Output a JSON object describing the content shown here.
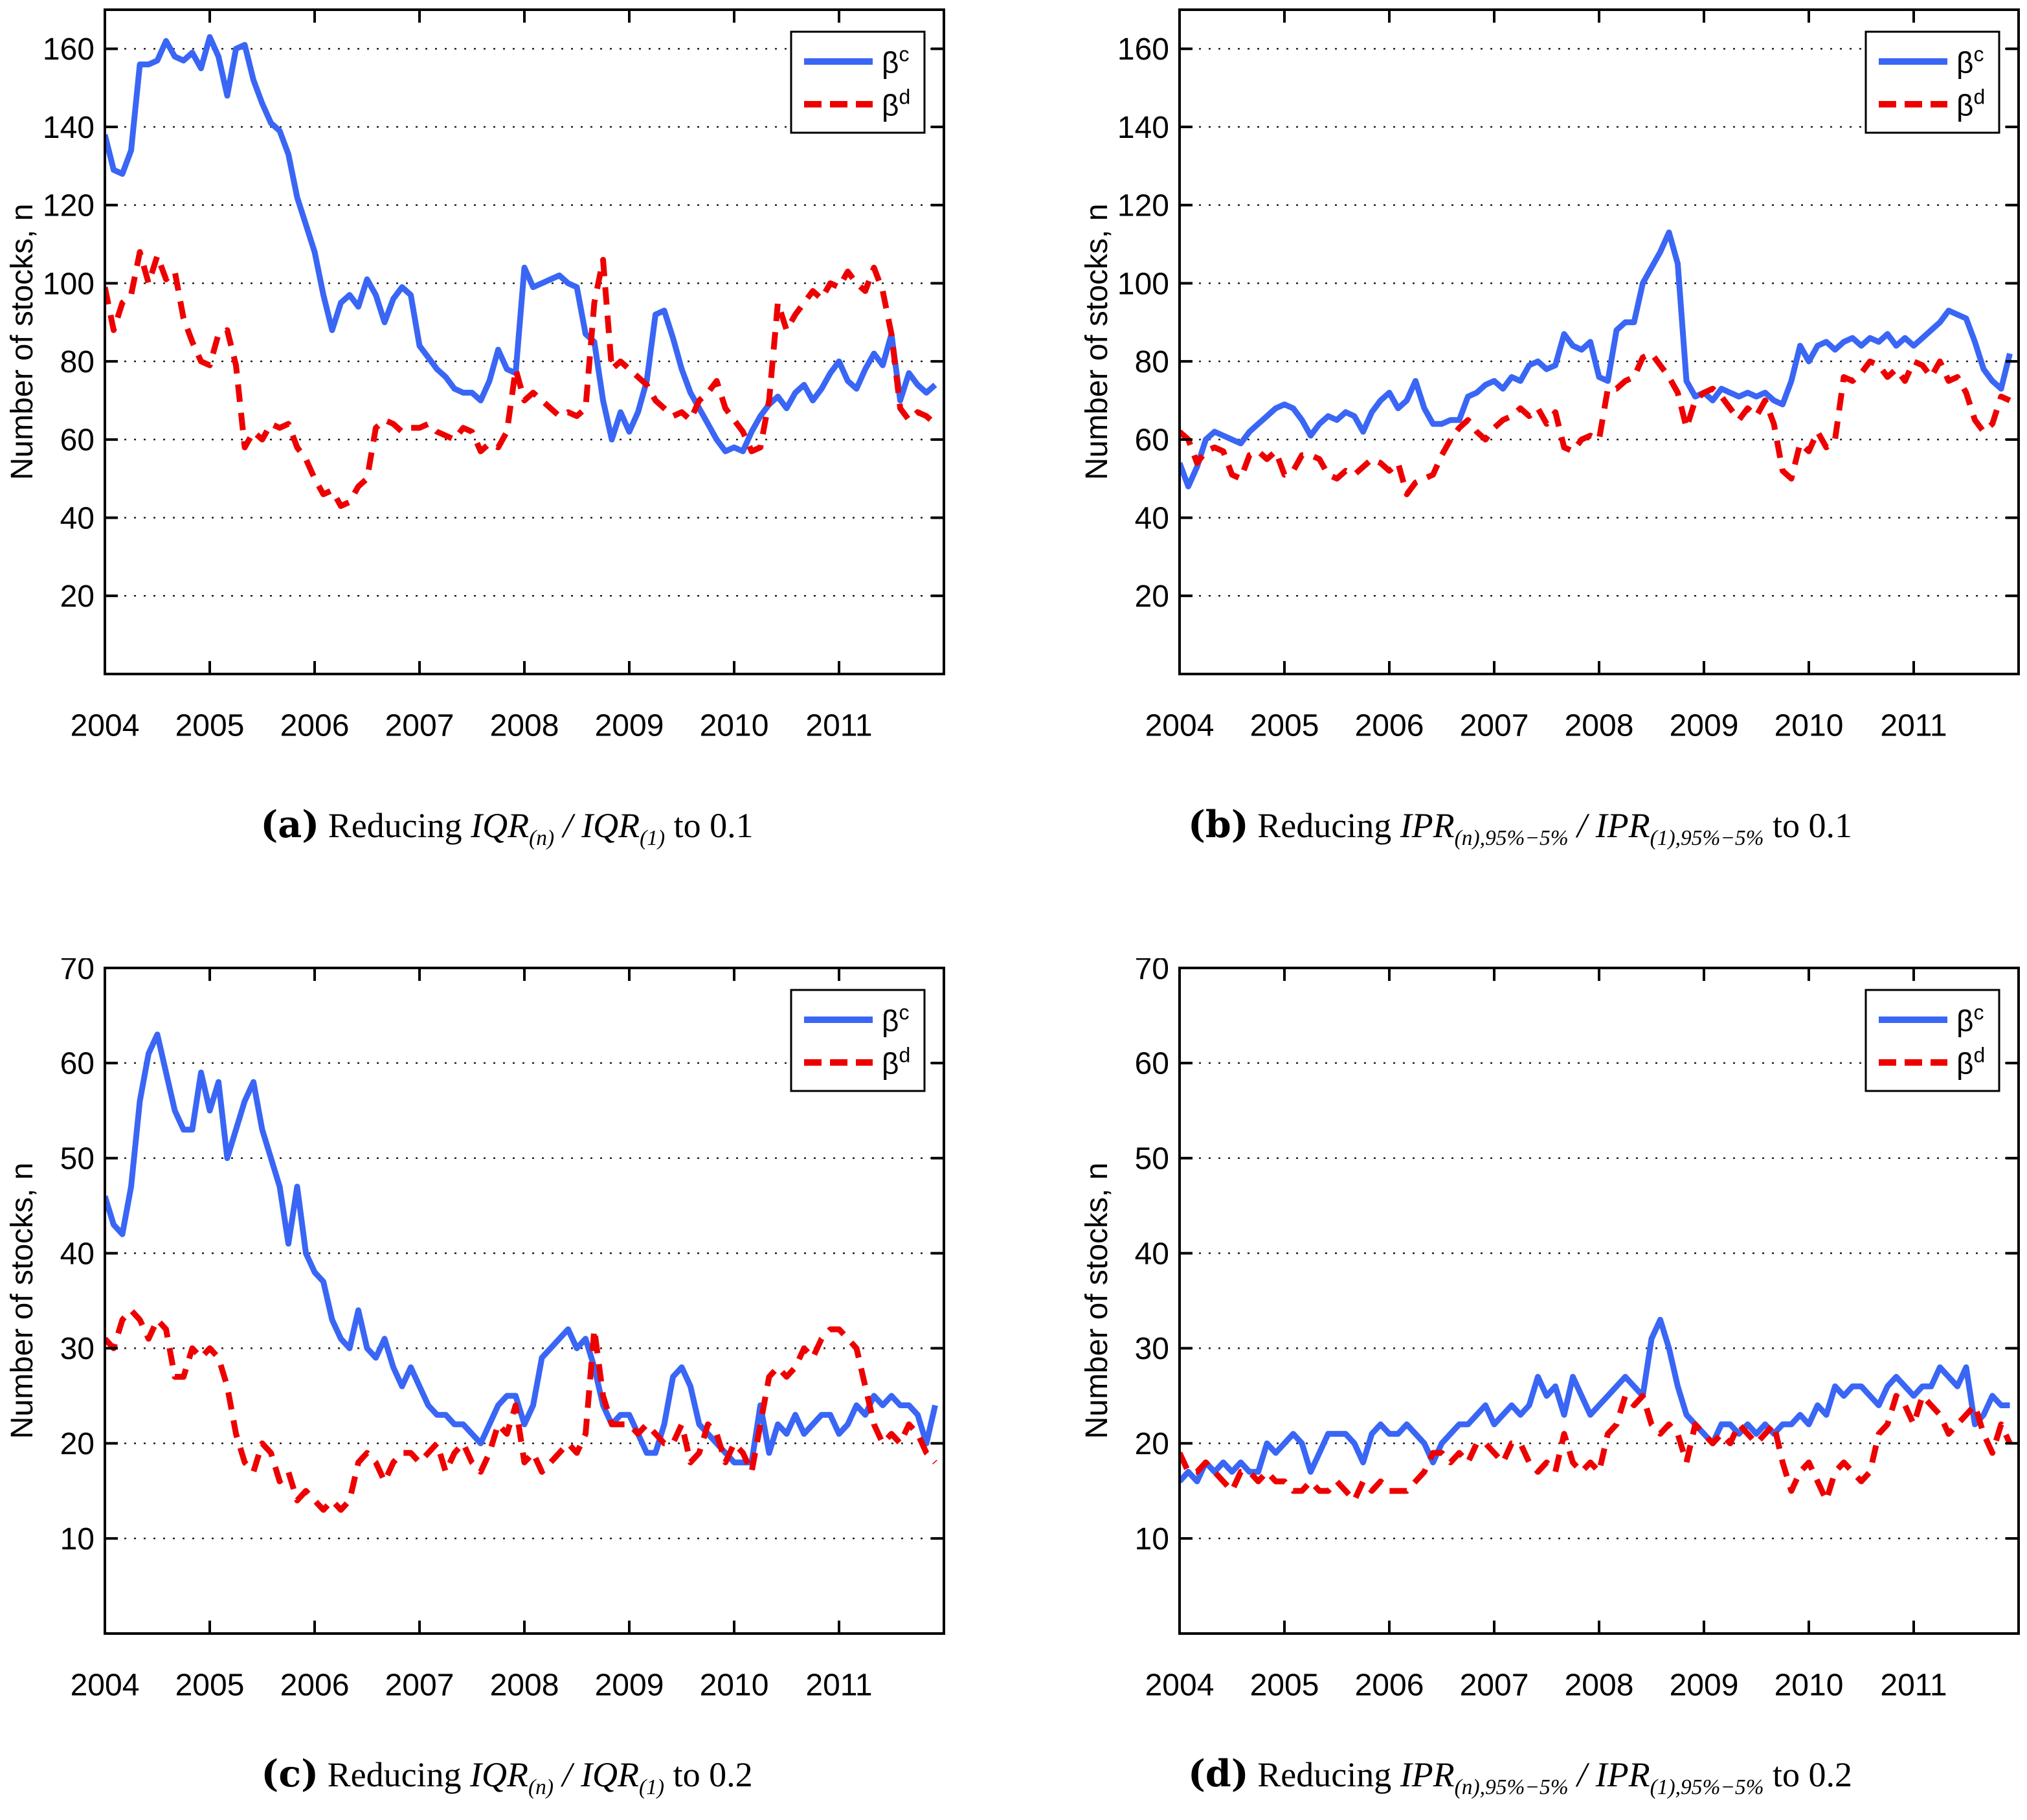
{
  "figure": {
    "background": "#ffffff",
    "axis_color": "#000000",
    "grid_color": "#222222",
    "series_colors": {
      "beta_c": "#3a66f5",
      "beta_d": "#ee0000"
    },
    "legend_labels": [
      {
        "base": "β",
        "sup": "c",
        "series": "beta_c"
      },
      {
        "base": "β",
        "sup": "d",
        "series": "beta_d"
      }
    ]
  },
  "chart_data": [
    {
      "id": "a",
      "type": "line",
      "title": "(a) Reducing IQR(n)/IQR(1) to 0.1",
      "caption_segments": [
        {
          "t": "(a)",
          "bold": true
        },
        {
          "t": " Reducing "
        },
        {
          "t": "IQR",
          "italic": true
        },
        {
          "t": "(n)",
          "italic": true,
          "sub": true
        },
        {
          "t": " / ",
          "italic": true
        },
        {
          "t": "IQR",
          "italic": true
        },
        {
          "t": "(1)",
          "italic": true,
          "sub": true
        },
        {
          "t": " to 0.1"
        }
      ],
      "ylabel": "Number of stocks, n",
      "xlim": [
        2004,
        2012
      ],
      "ylim": [
        0,
        170
      ],
      "yticks": [
        20,
        40,
        60,
        80,
        100,
        120,
        140,
        160
      ],
      "xticks": [
        2004,
        2005,
        2006,
        2007,
        2008,
        2009,
        2010,
        2011
      ],
      "grid": "dotted-horizontal",
      "legend_position": "top-right",
      "x_unit": "monthly from 2004-01 to 2011-12",
      "series": [
        {
          "name": "beta_c",
          "label": "β^c",
          "style": "solid",
          "color": "#3a66f5",
          "values": [
            138,
            129,
            128,
            134,
            156,
            156,
            157,
            162,
            158,
            157,
            159,
            155,
            163,
            158,
            148,
            160,
            161,
            152,
            146,
            141,
            139,
            133,
            122,
            115,
            108,
            97,
            88,
            95,
            97,
            94,
            101,
            97,
            90,
            96,
            99,
            97,
            84,
            81,
            78,
            76,
            73,
            72,
            72,
            70,
            75,
            83,
            78,
            77,
            104,
            99,
            100,
            101,
            102,
            100,
            99,
            87,
            85,
            70,
            60,
            67,
            62,
            67,
            75,
            92,
            93,
            86,
            78,
            72,
            68,
            64,
            60,
            57,
            58,
            57,
            62,
            66,
            69,
            71,
            68,
            72,
            74,
            70,
            73,
            77,
            80,
            75,
            73,
            78,
            82,
            79,
            87,
            70,
            77,
            74,
            72,
            74
          ]
        },
        {
          "name": "beta_d",
          "label": "β^d",
          "style": "dashed",
          "color": "#ee0000",
          "values": [
            99,
            88,
            95,
            97,
            108,
            100,
            107,
            101,
            103,
            91,
            85,
            80,
            79,
            87,
            88,
            79,
            58,
            62,
            60,
            64,
            63,
            64,
            58,
            55,
            50,
            46,
            47,
            43,
            44,
            48,
            50,
            63,
            65,
            64,
            62,
            63,
            63,
            64,
            62,
            61,
            60,
            63,
            62,
            57,
            59,
            58,
            62,
            78,
            70,
            72,
            70,
            68,
            66,
            67,
            66,
            68,
            95,
            106,
            78,
            80,
            78,
            76,
            74,
            70,
            68,
            66,
            67,
            65,
            70,
            72,
            75,
            68,
            65,
            62,
            57,
            58,
            70,
            95,
            88,
            92,
            95,
            98,
            96,
            100,
            99,
            103,
            100,
            98,
            104,
            98,
            87,
            68,
            65,
            67,
            66,
            64
          ]
        }
      ]
    },
    {
      "id": "b",
      "type": "line",
      "title": "(b) Reducing IPR(n),95%-5%/IPR(1),95%-5% to 0.1",
      "caption_segments": [
        {
          "t": "(b)",
          "bold": true
        },
        {
          "t": " Reducing "
        },
        {
          "t": "IPR",
          "italic": true
        },
        {
          "t": "(n),95%−5%",
          "italic": true,
          "sub": true
        },
        {
          "t": " / ",
          "italic": true
        },
        {
          "t": "IPR",
          "italic": true
        },
        {
          "t": "(1),95%−5%",
          "italic": true,
          "sub": true
        },
        {
          "t": " to 0.1"
        }
      ],
      "ylabel": "Number of stocks, n",
      "xlim": [
        2004,
        2012
      ],
      "ylim": [
        0,
        170
      ],
      "yticks": [
        20,
        40,
        60,
        80,
        100,
        120,
        140,
        160
      ],
      "xticks": [
        2004,
        2005,
        2006,
        2007,
        2008,
        2009,
        2010,
        2011
      ],
      "grid": "dotted-horizontal",
      "legend_position": "top-right",
      "x_unit": "monthly from 2004-01 to 2011-12",
      "series": [
        {
          "name": "beta_c",
          "label": "β^c",
          "style": "solid",
          "color": "#3a66f5",
          "values": [
            54,
            48,
            53,
            60,
            62,
            61,
            60,
            59,
            62,
            64,
            66,
            68,
            69,
            68,
            65,
            61,
            64,
            66,
            65,
            67,
            66,
            62,
            67,
            70,
            72,
            68,
            70,
            75,
            68,
            64,
            64,
            65,
            65,
            71,
            72,
            74,
            75,
            73,
            76,
            75,
            79,
            80,
            78,
            79,
            87,
            84,
            83,
            85,
            76,
            75,
            88,
            90,
            90,
            100,
            104,
            108,
            113,
            105,
            75,
            71,
            72,
            70,
            73,
            72,
            71,
            72,
            71,
            72,
            70,
            69,
            75,
            84,
            80,
            84,
            85,
            83,
            85,
            86,
            84,
            86,
            85,
            87,
            84,
            86,
            84,
            86,
            88,
            90,
            93,
            92,
            91,
            85,
            78,
            75,
            73,
            82
          ]
        },
        {
          "name": "beta_d",
          "label": "β^d",
          "style": "dashed",
          "color": "#ee0000",
          "values": [
            62,
            60,
            54,
            57,
            58,
            57,
            51,
            50,
            56,
            57,
            55,
            57,
            51,
            52,
            56,
            56,
            55,
            51,
            50,
            52,
            51,
            53,
            55,
            54,
            52,
            54,
            46,
            49,
            50,
            51,
            56,
            60,
            63,
            65,
            62,
            60,
            63,
            65,
            66,
            68,
            66,
            68,
            64,
            67,
            58,
            57,
            60,
            61,
            60,
            73,
            73,
            75,
            76,
            81,
            82,
            79,
            76,
            72,
            63,
            70,
            72,
            73,
            71,
            68,
            65,
            68,
            66,
            70,
            64,
            52,
            50,
            59,
            57,
            62,
            58,
            60,
            76,
            75,
            77,
            80,
            79,
            76,
            78,
            75,
            80,
            79,
            76,
            80,
            75,
            76,
            72,
            65,
            62,
            64,
            71,
            70
          ]
        }
      ]
    },
    {
      "id": "c",
      "type": "line",
      "title": "(c) Reducing IQR(n)/IQR(1) to 0.2",
      "caption_segments": [
        {
          "t": "(c)",
          "bold": true
        },
        {
          "t": " Reducing "
        },
        {
          "t": "IQR",
          "italic": true
        },
        {
          "t": "(n)",
          "italic": true,
          "sub": true
        },
        {
          "t": " / ",
          "italic": true
        },
        {
          "t": "IQR",
          "italic": true
        },
        {
          "t": "(1)",
          "italic": true,
          "sub": true
        },
        {
          "t": " to 0.2"
        }
      ],
      "ylabel": "Number of stocks, n",
      "xlim": [
        2004,
        2012
      ],
      "ylim": [
        0,
        70
      ],
      "yticks": [
        10,
        20,
        30,
        40,
        50,
        60,
        70
      ],
      "xticks": [
        2004,
        2005,
        2006,
        2007,
        2008,
        2009,
        2010,
        2011
      ],
      "grid": "dotted-horizontal",
      "legend_position": "top-right",
      "x_unit": "monthly from 2004-01 to 2011-12",
      "series": [
        {
          "name": "beta_c",
          "label": "β^c",
          "style": "solid",
          "color": "#3a66f5",
          "values": [
            46,
            43,
            42,
            47,
            56,
            61,
            63,
            59,
            55,
            53,
            53,
            59,
            55,
            58,
            50,
            53,
            56,
            58,
            53,
            50,
            47,
            41,
            47,
            40,
            38,
            37,
            33,
            31,
            30,
            34,
            30,
            29,
            31,
            28,
            26,
            28,
            26,
            24,
            23,
            23,
            22,
            22,
            21,
            20,
            22,
            24,
            25,
            25,
            22,
            24,
            29,
            30,
            31,
            32,
            30,
            31,
            28,
            24,
            22,
            23,
            23,
            21,
            19,
            19,
            22,
            27,
            28,
            26,
            22,
            21,
            20,
            19,
            18,
            18,
            18,
            24,
            19,
            22,
            21,
            23,
            21,
            22,
            23,
            23,
            21,
            22,
            24,
            23,
            25,
            24,
            25,
            24,
            24,
            23,
            20,
            24
          ]
        },
        {
          "name": "beta_d",
          "label": "β^d",
          "style": "dashed",
          "color": "#ee0000",
          "values": [
            31,
            30,
            33,
            34,
            33,
            31,
            33,
            32,
            27,
            27,
            30,
            29,
            30,
            29,
            26,
            21,
            18,
            17,
            20,
            19,
            16,
            17,
            14,
            15,
            14,
            13,
            14,
            13,
            14,
            18,
            19,
            18,
            16,
            18,
            19,
            19,
            18,
            19,
            20,
            17,
            19,
            20,
            18,
            17,
            19,
            22,
            21,
            24,
            18,
            19,
            17,
            18,
            19,
            20,
            19,
            21,
            32,
            25,
            22,
            22,
            22,
            21,
            22,
            21,
            20,
            20,
            22,
            18,
            19,
            22,
            21,
            18,
            20,
            19,
            17,
            22,
            27,
            28,
            27,
            28,
            30,
            29,
            31,
            32,
            32,
            31,
            30,
            26,
            22,
            20,
            21,
            20,
            22,
            21,
            19,
            18
          ]
        }
      ]
    },
    {
      "id": "d",
      "type": "line",
      "title": "(d) Reducing IPR(n),95%-5%/IPR(1),95%-5% to 0.2",
      "caption_segments": [
        {
          "t": "(d)",
          "bold": true
        },
        {
          "t": " Reducing "
        },
        {
          "t": "IPR",
          "italic": true
        },
        {
          "t": "(n),95%−5%",
          "italic": true,
          "sub": true
        },
        {
          "t": " / ",
          "italic": true
        },
        {
          "t": "IPR",
          "italic": true
        },
        {
          "t": "(1),95%−5%",
          "italic": true,
          "sub": true
        },
        {
          "t": " to 0.2"
        }
      ],
      "ylabel": "Number of stocks, n",
      "xlim": [
        2004,
        2012
      ],
      "ylim": [
        0,
        70
      ],
      "yticks": [
        10,
        20,
        30,
        40,
        50,
        60,
        70
      ],
      "xticks": [
        2004,
        2005,
        2006,
        2007,
        2008,
        2009,
        2010,
        2011
      ],
      "grid": "dotted-horizontal",
      "legend_position": "top-right",
      "x_unit": "monthly from 2004-01 to 2011-12",
      "series": [
        {
          "name": "beta_c",
          "label": "β^c",
          "style": "solid",
          "color": "#3a66f5",
          "values": [
            16,
            17,
            16,
            18,
            17,
            18,
            17,
            18,
            17,
            17,
            20,
            19,
            20,
            21,
            20,
            17,
            19,
            21,
            21,
            21,
            20,
            18,
            21,
            22,
            21,
            21,
            22,
            21,
            20,
            18,
            20,
            21,
            22,
            22,
            23,
            24,
            22,
            23,
            24,
            23,
            24,
            27,
            25,
            26,
            23,
            27,
            25,
            23,
            24,
            25,
            26,
            27,
            26,
            25,
            31,
            33,
            30,
            26,
            23,
            22,
            21,
            20,
            22,
            22,
            21,
            22,
            21,
            22,
            21,
            22,
            22,
            23,
            22,
            24,
            23,
            26,
            25,
            26,
            26,
            25,
            24,
            26,
            27,
            26,
            25,
            26,
            26,
            28,
            27,
            26,
            28,
            22,
            23,
            25,
            24,
            24
          ]
        },
        {
          "name": "beta_d",
          "label": "β^d",
          "style": "dashed",
          "color": "#ee0000",
          "values": [
            19,
            17,
            17,
            18,
            17,
            16,
            15,
            17,
            17,
            16,
            17,
            16,
            16,
            15,
            15,
            16,
            15,
            15,
            16,
            15,
            14,
            16,
            15,
            16,
            15,
            15,
            15,
            16,
            17,
            19,
            19,
            18,
            19,
            18,
            20,
            20,
            19,
            18,
            20,
            20,
            18,
            17,
            18,
            17,
            21,
            18,
            17,
            18,
            17,
            21,
            22,
            25,
            24,
            25,
            22,
            21,
            22,
            21,
            18,
            22,
            21,
            20,
            21,
            20,
            22,
            21,
            20,
            21,
            22,
            18,
            15,
            17,
            18,
            16,
            14,
            17,
            18,
            17,
            16,
            17,
            21,
            22,
            25,
            24,
            22,
            25,
            24,
            23,
            21,
            22,
            23,
            24,
            21,
            19,
            22,
            20
          ]
        }
      ]
    }
  ]
}
